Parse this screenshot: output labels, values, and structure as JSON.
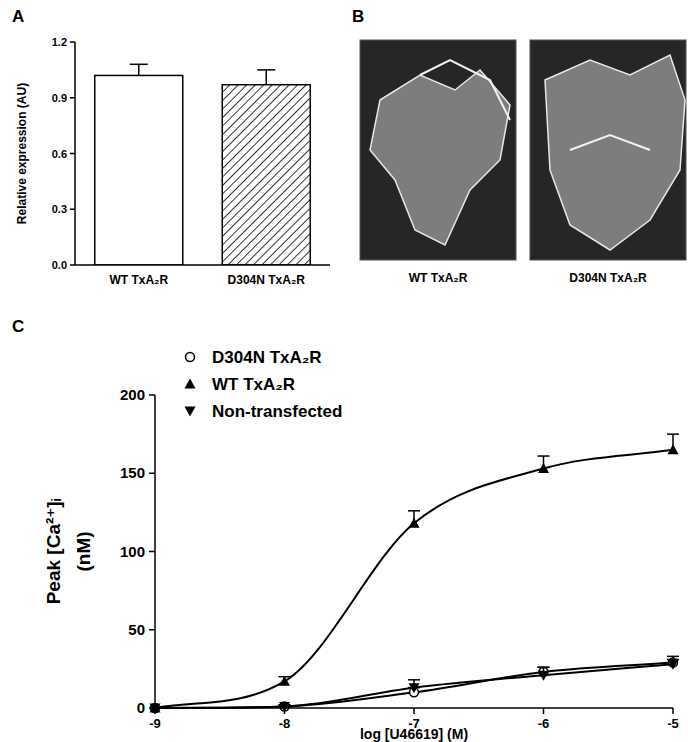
{
  "chart_data": [
    {
      "type": "bar",
      "title": "A",
      "categories": [
        "WT TxA₂R",
        "D304N TxA₂R"
      ],
      "values": [
        1.02,
        0.97
      ],
      "errors": [
        0.06,
        0.08
      ],
      "colors": [
        "#ffffff",
        "#ffffff"
      ],
      "ylabel": "Relative expression (AU)",
      "ylim": [
        0,
        1.2
      ],
      "yticks": [
        {
          "value": 0,
          "label": "0.0"
        },
        0.3,
        0.6,
        0.9,
        1.2
      ],
      "grid": false
    },
    {
      "type": "line",
      "title": "C",
      "x": [
        -9,
        -8,
        -7,
        -6,
        -5
      ],
      "series": [
        {
          "name": "D304N TxA₂R",
          "color": "#000000",
          "marker": "circle-open",
          "values": [
            0,
            1,
            10,
            23,
            29
          ],
          "errors": [
            0,
            1,
            3,
            3,
            4
          ]
        },
        {
          "name": "WT TxA₂R",
          "color": "#000000",
          "marker": "triangle",
          "values": [
            0,
            17,
            118,
            153,
            165
          ],
          "errors": [
            0,
            3,
            8,
            8,
            10
          ]
        },
        {
          "name": "Non-transfected",
          "color": "#000000",
          "marker": "triangle-down",
          "values": [
            0,
            1,
            13,
            21,
            28
          ],
          "errors": [
            0,
            1,
            5,
            5,
            3
          ]
        }
      ],
      "xlabel": "log [U46619] (M)",
      "ylabel": "Peak [Ca²⁺]ᵢ\n(nM)",
      "xlim": [
        -9,
        -5
      ],
      "xticks": [
        -9,
        -8,
        -7,
        -6,
        -5
      ],
      "ylim": [
        0,
        200
      ],
      "yticks": [
        0,
        50,
        100,
        150,
        200
      ],
      "legend": "upper left",
      "grid": false
    }
  ],
  "image_panel": {
    "title": "B",
    "images": [
      {
        "caption": "WT TxA₂R"
      },
      {
        "caption": "D304N TxA₂R"
      }
    ]
  }
}
